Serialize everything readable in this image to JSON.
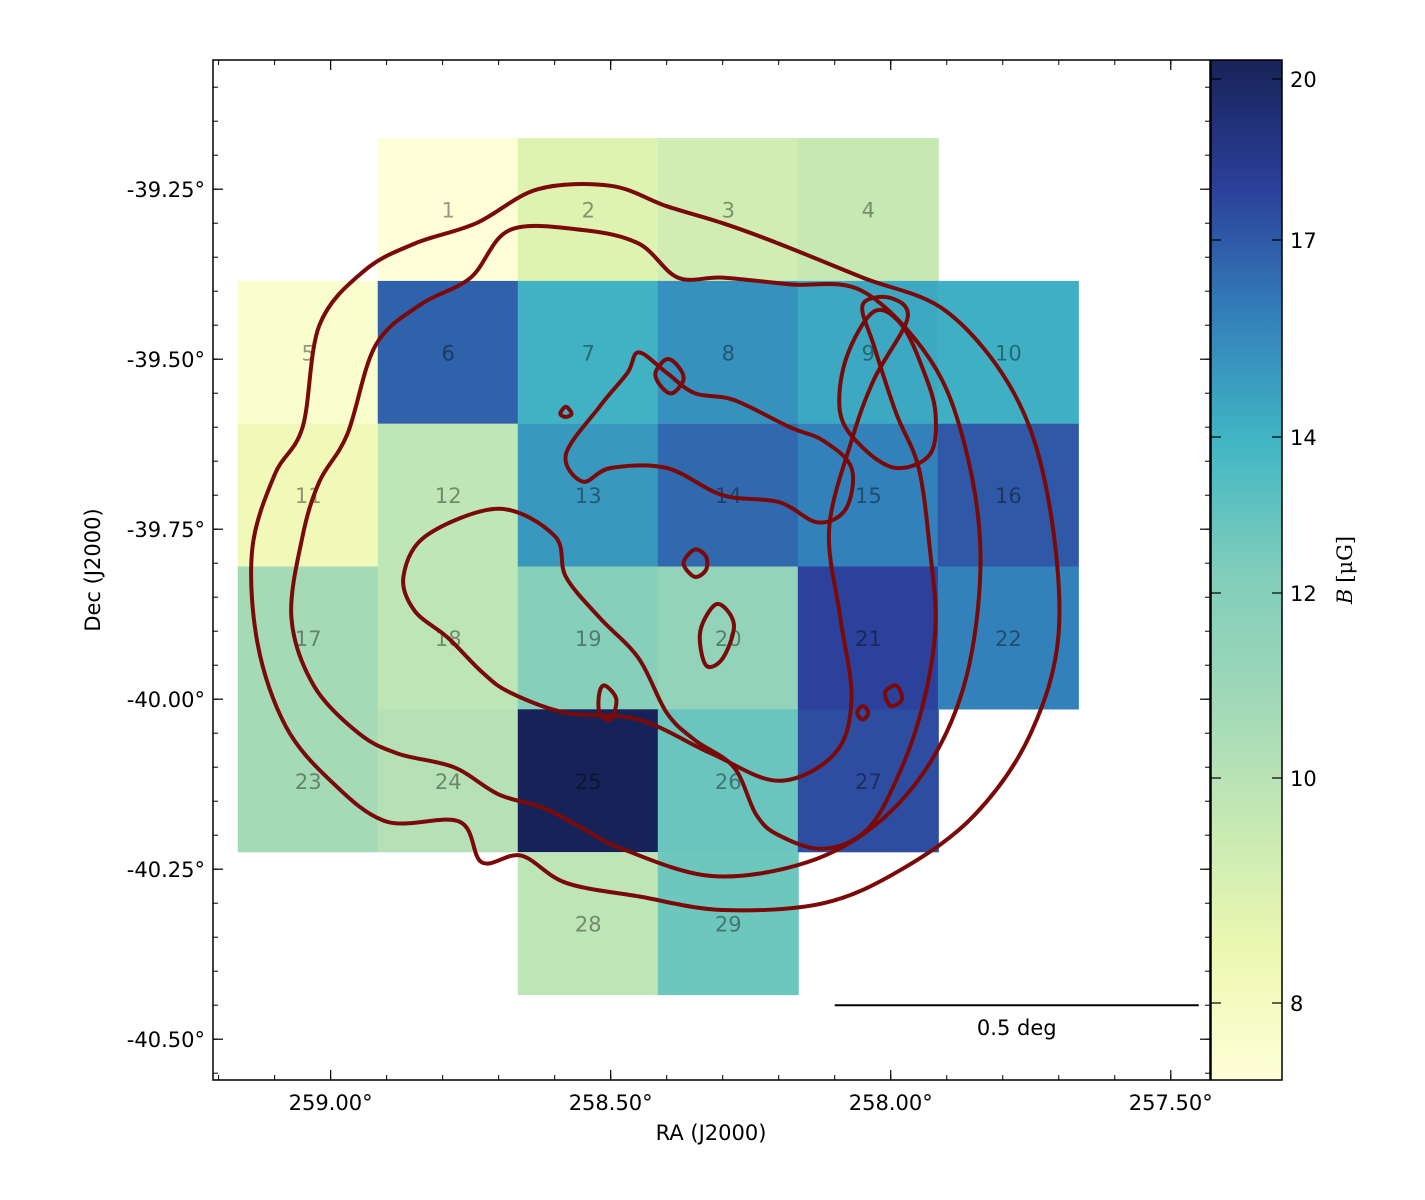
{
  "chart_data": {
    "type": "heatmap",
    "title": "",
    "xlabel": "RA (J2000)",
    "ylabel": "Dec (J2000)",
    "x_ticks": [
      {
        "value": 259.0,
        "label": "259.00°"
      },
      {
        "value": 258.5,
        "label": "258.50°"
      },
      {
        "value": 258.0,
        "label": "258.00°"
      },
      {
        "value": 257.5,
        "label": "257.50°"
      }
    ],
    "y_ticks": [
      {
        "value": -39.25,
        "label": "-39.25°"
      },
      {
        "value": -39.5,
        "label": "-39.50°"
      },
      {
        "value": -39.75,
        "label": "-39.75°"
      },
      {
        "value": -40.0,
        "label": "-40.00°"
      },
      {
        "value": -40.25,
        "label": "-40.25°"
      },
      {
        "value": -40.5,
        "label": "-40.50°"
      }
    ],
    "xlim": [
      259.21,
      257.43
    ],
    "ylim": [
      -40.56,
      -39.06
    ],
    "x_reversed": true,
    "colorbar": {
      "label": "B [μG]",
      "label_symbol": "B",
      "label_unit": "[μG]",
      "range": [
        7.2,
        20.3
      ],
      "ticks": [
        8,
        10,
        12,
        14,
        17,
        20
      ],
      "colormap": "YlGnBu"
    },
    "cells": [
      {
        "id": "1",
        "ra": 258.79,
        "dec": -39.28,
        "B": 7.3
      },
      {
        "id": "2",
        "ra": 258.54,
        "dec": -39.28,
        "B": 9.5
      },
      {
        "id": "3",
        "ra": 258.29,
        "dec": -39.28,
        "B": 10.0
      },
      {
        "id": "4",
        "ra": 258.04,
        "dec": -39.28,
        "B": 10.5
      },
      {
        "id": "5",
        "ra": 259.04,
        "dec": -39.49,
        "B": 7.7
      },
      {
        "id": "6",
        "ra": 258.79,
        "dec": -39.49,
        "B": 17.8
      },
      {
        "id": "7",
        "ra": 258.54,
        "dec": -39.49,
        "B": 15.5
      },
      {
        "id": "8",
        "ra": 258.29,
        "dec": -39.49,
        "B": 16.5
      },
      {
        "id": "9",
        "ra": 258.04,
        "dec": -39.49,
        "B": 15.8
      },
      {
        "id": "10",
        "ra": 257.79,
        "dec": -39.49,
        "B": 15.6
      },
      {
        "id": "11",
        "ra": 259.04,
        "dec": -39.7,
        "B": 8.6
      },
      {
        "id": "12",
        "ra": 258.79,
        "dec": -39.7,
        "B": 10.8
      },
      {
        "id": "13",
        "ra": 258.54,
        "dec": -39.7,
        "B": 16.3
      },
      {
        "id": "14",
        "ra": 258.29,
        "dec": -39.7,
        "B": 17.6
      },
      {
        "id": "15",
        "ra": 258.04,
        "dec": -39.7,
        "B": 17.0
      },
      {
        "id": "16",
        "ra": 257.79,
        "dec": -39.7,
        "B": 18.0
      },
      {
        "id": "17",
        "ra": 259.04,
        "dec": -39.91,
        "B": 11.9
      },
      {
        "id": "18",
        "ra": 258.79,
        "dec": -39.91,
        "B": 10.9
      },
      {
        "id": "19",
        "ra": 258.54,
        "dec": -39.91,
        "B": 13.4
      },
      {
        "id": "20",
        "ra": 258.29,
        "dec": -39.91,
        "B": 12.8
      },
      {
        "id": "21",
        "ra": 258.04,
        "dec": -39.91,
        "B": 18.6
      },
      {
        "id": "22",
        "ra": 257.79,
        "dec": -39.91,
        "B": 17.0
      },
      {
        "id": "23",
        "ra": 259.04,
        "dec": -40.12,
        "B": 11.9
      },
      {
        "id": "24",
        "ra": 258.79,
        "dec": -40.12,
        "B": 11.2
      },
      {
        "id": "25",
        "ra": 258.54,
        "dec": -40.12,
        "B": 20.3
      },
      {
        "id": "26",
        "ra": 258.29,
        "dec": -40.12,
        "B": 14.3
      },
      {
        "id": "27",
        "ra": 258.04,
        "dec": -40.12,
        "B": 18.3
      },
      {
        "id": "28",
        "ra": 258.54,
        "dec": -40.33,
        "B": 10.9
      },
      {
        "id": "29",
        "ra": 258.29,
        "dec": -40.33,
        "B": 14.2
      }
    ],
    "scalebar": {
      "label": "0.5 deg",
      "length_deg": 0.5,
      "ra_start": 258.1,
      "dec": -40.45
    },
    "contour_color": "#7a0a0a",
    "contours": [
      {
        "name": "outer",
        "points": [
          [
            258.63,
            -39.25
          ],
          [
            258.5,
            -39.245
          ],
          [
            258.4,
            -39.275
          ],
          [
            258.3,
            -39.3
          ],
          [
            258.2,
            -39.33
          ],
          [
            258.05,
            -39.38
          ],
          [
            257.9,
            -39.43
          ],
          [
            257.78,
            -39.55
          ],
          [
            257.72,
            -39.7
          ],
          [
            257.7,
            -39.9
          ],
          [
            257.75,
            -40.05
          ],
          [
            257.85,
            -40.17
          ],
          [
            257.98,
            -40.25
          ],
          [
            258.12,
            -40.3
          ],
          [
            258.3,
            -40.31
          ],
          [
            258.45,
            -40.29
          ],
          [
            258.58,
            -40.27
          ],
          [
            258.66,
            -40.23
          ],
          [
            258.73,
            -40.24
          ],
          [
            258.77,
            -40.18
          ],
          [
            258.9,
            -40.18
          ],
          [
            259.0,
            -40.12
          ],
          [
            259.08,
            -40.04
          ],
          [
            259.13,
            -39.92
          ],
          [
            259.14,
            -39.78
          ],
          [
            259.1,
            -39.67
          ],
          [
            259.05,
            -39.6
          ],
          [
            259.02,
            -39.45
          ],
          [
            258.94,
            -39.37
          ],
          [
            258.85,
            -39.33
          ],
          [
            258.74,
            -39.3
          ],
          [
            258.63,
            -39.25
          ]
        ]
      },
      {
        "name": "middle",
        "points": [
          [
            258.68,
            -39.31
          ],
          [
            258.55,
            -39.31
          ],
          [
            258.45,
            -39.33
          ],
          [
            258.38,
            -39.38
          ],
          [
            258.3,
            -39.38
          ],
          [
            258.18,
            -39.39
          ],
          [
            258.05,
            -39.4
          ],
          [
            257.93,
            -39.5
          ],
          [
            257.87,
            -39.62
          ],
          [
            257.84,
            -39.78
          ],
          [
            257.86,
            -39.95
          ],
          [
            257.92,
            -40.08
          ],
          [
            258.02,
            -40.18
          ],
          [
            258.15,
            -40.24
          ],
          [
            258.32,
            -40.26
          ],
          [
            258.48,
            -40.22
          ],
          [
            258.55,
            -40.19
          ],
          [
            258.62,
            -40.16
          ],
          [
            258.7,
            -40.14
          ],
          [
            258.78,
            -40.1
          ],
          [
            258.88,
            -40.08
          ],
          [
            258.95,
            -40.05
          ],
          [
            259.03,
            -39.98
          ],
          [
            259.07,
            -39.88
          ],
          [
            259.05,
            -39.76
          ],
          [
            259.02,
            -39.68
          ],
          [
            258.97,
            -39.61
          ],
          [
            258.92,
            -39.48
          ],
          [
            258.84,
            -39.42
          ],
          [
            258.75,
            -39.38
          ],
          [
            258.68,
            -39.31
          ]
        ]
      },
      {
        "name": "inner-west",
        "points": [
          [
            258.83,
            -39.76
          ],
          [
            258.7,
            -39.72
          ],
          [
            258.6,
            -39.76
          ],
          [
            258.58,
            -39.82
          ],
          [
            258.52,
            -39.88
          ],
          [
            258.45,
            -39.94
          ],
          [
            258.4,
            -40.02
          ],
          [
            258.35,
            -40.06
          ],
          [
            258.28,
            -40.1
          ],
          [
            258.24,
            -40.17
          ],
          [
            258.2,
            -40.2
          ],
          [
            258.12,
            -40.22
          ],
          [
            258.04,
            -40.19
          ],
          [
            257.98,
            -40.1
          ],
          [
            257.94,
            -40.0
          ],
          [
            257.92,
            -39.89
          ],
          [
            257.93,
            -39.78
          ],
          [
            257.95,
            -39.66
          ],
          [
            257.99,
            -39.58
          ],
          [
            258.03,
            -39.48
          ],
          [
            258.05,
            -39.42
          ],
          [
            258.0,
            -39.41
          ],
          [
            257.97,
            -39.44
          ],
          [
            258.03,
            -39.53
          ],
          [
            258.07,
            -39.62
          ],
          [
            258.11,
            -39.75
          ],
          [
            258.09,
            -39.88
          ],
          [
            258.07,
            -40.0
          ],
          [
            258.1,
            -40.08
          ],
          [
            258.2,
            -40.12
          ],
          [
            258.32,
            -40.08
          ],
          [
            258.45,
            -40.03
          ],
          [
            258.58,
            -40.02
          ],
          [
            258.68,
            -39.99
          ],
          [
            258.73,
            -39.96
          ],
          [
            258.79,
            -39.91
          ],
          [
            258.85,
            -39.87
          ],
          [
            258.87,
            -39.82
          ],
          [
            258.83,
            -39.76
          ]
        ]
      },
      {
        "name": "inner-north",
        "points": [
          [
            258.45,
            -39.49
          ],
          [
            258.4,
            -39.52
          ],
          [
            258.35,
            -39.55
          ],
          [
            258.28,
            -39.56
          ],
          [
            258.18,
            -39.6
          ],
          [
            258.12,
            -39.62
          ],
          [
            258.07,
            -39.66
          ],
          [
            258.08,
            -39.72
          ],
          [
            258.13,
            -39.74
          ],
          [
            258.2,
            -39.71
          ],
          [
            258.3,
            -39.7
          ],
          [
            258.4,
            -39.66
          ],
          [
            258.5,
            -39.66
          ],
          [
            258.55,
            -39.68
          ],
          [
            258.58,
            -39.64
          ],
          [
            258.52,
            -39.57
          ],
          [
            258.47,
            -39.52
          ],
          [
            258.45,
            -39.49
          ]
        ]
      },
      {
        "name": "hotspot-ne",
        "points": [
          [
            258.03,
            -39.43
          ],
          [
            257.98,
            -39.45
          ],
          [
            257.94,
            -39.52
          ],
          [
            257.92,
            -39.58
          ],
          [
            257.93,
            -39.64
          ],
          [
            257.99,
            -39.66
          ],
          [
            258.05,
            -39.63
          ],
          [
            258.09,
            -39.58
          ],
          [
            258.08,
            -39.5
          ],
          [
            258.03,
            -39.43
          ]
        ]
      },
      {
        "name": "blob-1",
        "points": [
          [
            258.4,
            -39.5
          ],
          [
            258.38,
            -39.51
          ],
          [
            258.37,
            -39.53
          ],
          [
            258.39,
            -39.55
          ],
          [
            258.41,
            -39.54
          ],
          [
            258.42,
            -39.52
          ],
          [
            258.4,
            -39.5
          ]
        ]
      },
      {
        "name": "blob-2",
        "points": [
          [
            258.35,
            -39.78
          ],
          [
            258.33,
            -39.79
          ],
          [
            258.33,
            -39.81
          ],
          [
            258.35,
            -39.82
          ],
          [
            258.37,
            -39.8
          ],
          [
            258.35,
            -39.78
          ]
        ]
      },
      {
        "name": "blob-3",
        "points": [
          [
            258.51,
            -39.98
          ],
          [
            258.49,
            -40.0
          ],
          [
            258.5,
            -40.03
          ],
          [
            258.52,
            -40.02
          ],
          [
            258.52,
            -39.99
          ],
          [
            258.51,
            -39.98
          ]
        ]
      },
      {
        "name": "blob-4",
        "points": [
          [
            258.31,
            -39.86
          ],
          [
            258.28,
            -39.89
          ],
          [
            258.3,
            -39.94
          ],
          [
            258.33,
            -39.95
          ],
          [
            258.34,
            -39.9
          ],
          [
            258.31,
            -39.86
          ]
        ]
      },
      {
        "name": "blob-5",
        "points": [
          [
            257.99,
            -39.98
          ],
          [
            257.98,
            -40.0
          ],
          [
            258.0,
            -40.01
          ],
          [
            258.01,
            -39.99
          ],
          [
            257.99,
            -39.98
          ]
        ]
      },
      {
        "name": "blob-6",
        "points": [
          [
            258.05,
            -40.01
          ],
          [
            258.04,
            -40.02
          ],
          [
            258.05,
            -40.03
          ],
          [
            258.06,
            -40.02
          ],
          [
            258.05,
            -40.01
          ]
        ]
      },
      {
        "name": "blob-7",
        "points": [
          [
            258.58,
            -39.57
          ],
          [
            258.57,
            -39.58
          ],
          [
            258.58,
            -39.585
          ],
          [
            258.59,
            -39.58
          ],
          [
            258.58,
            -39.57
          ]
        ]
      }
    ]
  }
}
